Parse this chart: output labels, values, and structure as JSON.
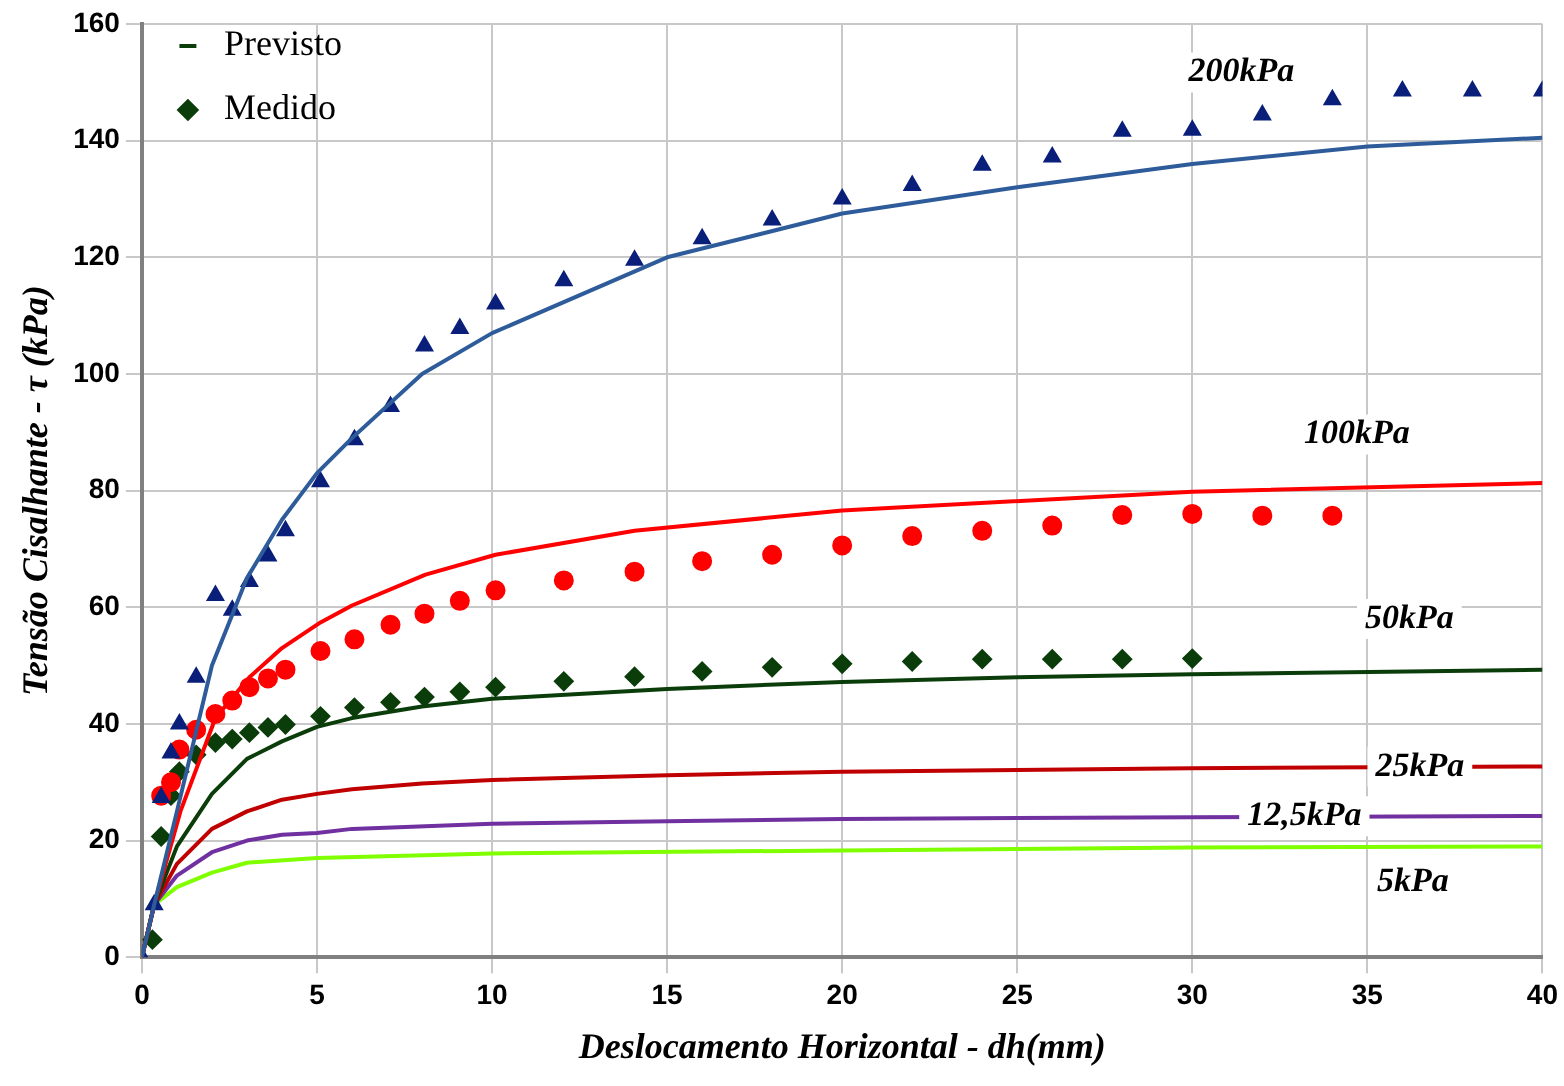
{
  "chart_data": {
    "type": "line",
    "xlabel": "Deslocamento Horizontal - dh(mm)",
    "ylabel": "Tensão Cisalhante - τ (kPa)",
    "xlim": [
      0,
      40
    ],
    "xticks": [
      0,
      5,
      10,
      15,
      20,
      25,
      30,
      35,
      40
    ],
    "ylim": [
      0,
      160
    ],
    "yticks": [
      0,
      20,
      40,
      60,
      80,
      100,
      120,
      140,
      160
    ],
    "grid": true,
    "legend": "top left",
    "line_style": "solid",
    "series": [
      {
        "marker": "none",
        "color": "#2e5c9a",
        "x": [
          0,
          0.35,
          1,
          2,
          3,
          4,
          5,
          6,
          8,
          10,
          15,
          20,
          25,
          30,
          35,
          40
        ],
        "values": [
          0,
          9,
          25,
          50,
          65,
          75,
          83,
          89,
          100,
          107,
          120,
          127.5,
          132,
          136,
          139,
          140.5
        ]
      },
      {
        "type": "scatter",
        "marker": "triangle",
        "color": "#0a1f7a",
        "x": [
          0,
          0.35,
          0.55,
          0.83,
          1.07,
          1.55,
          2.1,
          2.58,
          3.07,
          3.6,
          4.1,
          5.1,
          6.07,
          7.1,
          8.07,
          9.08,
          10.1,
          12.05,
          14.07,
          16,
          18,
          20,
          22,
          24,
          26,
          28,
          30,
          32,
          34,
          36,
          38,
          40
        ],
        "values": [
          0,
          9,
          27.4,
          35,
          40,
          48,
          62,
          59.5,
          64.4,
          68.8,
          73.1,
          81.5,
          88.7,
          94.4,
          104.8,
          107.8,
          112,
          116,
          119.5,
          123.2,
          126.4,
          130,
          132.3,
          135.8,
          137.2,
          141.6,
          141.8,
          144.4,
          147,
          148.5,
          148.5,
          148.5
        ]
      },
      {
        "marker": "none",
        "color": "#ff0000",
        "x": [
          0,
          0.35,
          1.1,
          2.1,
          3.07,
          4,
          5.1,
          6,
          8.1,
          10.1,
          14.07,
          20,
          30,
          40
        ],
        "values": [
          0,
          9,
          25,
          41,
          48,
          53,
          57.4,
          60.3,
          65.6,
          69,
          73.1,
          76.6,
          79.8,
          81.3
        ]
      },
      {
        "type": "scatter",
        "marker": "circle",
        "color": "#ff0000",
        "x": [
          0.55,
          0.83,
          1.07,
          1.55,
          2.1,
          2.58,
          3.07,
          3.6,
          4.1,
          5.1,
          6.07,
          7.1,
          8.07,
          9.08,
          10.1,
          12.05,
          14.07,
          16,
          18,
          20,
          22,
          24,
          26,
          28,
          30,
          32,
          34
        ],
        "values": [
          27.7,
          30,
          35.6,
          39,
          41.7,
          44,
          46.3,
          47.8,
          49.3,
          52.5,
          54.5,
          57,
          58.9,
          61.1,
          62.9,
          64.6,
          66.1,
          67.9,
          69,
          70.6,
          72.2,
          73.1,
          74,
          75.8,
          76,
          75.7,
          75.7
        ]
      },
      {
        "marker": "none",
        "name": "Previsto",
        "color": "#0b3d0b",
        "x": [
          0,
          0.35,
          1,
          2,
          3,
          4,
          5,
          6,
          8,
          10,
          15,
          20,
          25,
          30,
          40
        ],
        "values": [
          0,
          9,
          19,
          28,
          34,
          37,
          39.5,
          41,
          43,
          44.3,
          46,
          47.2,
          48,
          48.5,
          49.3
        ]
      },
      {
        "type": "scatter",
        "marker": "diamond",
        "name": "Medido",
        "color": "#0b3d0b",
        "x": [
          0.3,
          0.55,
          0.83,
          1.07,
          1.55,
          2.1,
          2.58,
          3.07,
          3.6,
          4.1,
          5.1,
          6.07,
          7.1,
          8.07,
          9.08,
          10.1,
          12.05,
          14.07,
          16,
          18,
          20,
          22,
          24,
          26,
          28,
          30
        ],
        "values": [
          3,
          20.7,
          27.7,
          31.8,
          34.7,
          36.8,
          37.4,
          38.5,
          39.4,
          39.9,
          41.3,
          42.8,
          43.7,
          44.6,
          45.5,
          46.3,
          47.3,
          48.1,
          49,
          49.7,
          50.3,
          50.7,
          51.1,
          51.1,
          51.1,
          51.2
        ]
      },
      {
        "marker": "none",
        "color": "#c00000",
        "x": [
          0,
          0.35,
          1,
          2,
          3,
          4,
          5,
          6,
          8,
          10,
          15,
          20,
          30,
          40
        ],
        "values": [
          0,
          9,
          16,
          22,
          25,
          27,
          28,
          28.8,
          29.8,
          30.4,
          31.2,
          31.8,
          32.4,
          32.7
        ]
      },
      {
        "marker": "none",
        "color": "#7030a0",
        "x": [
          0,
          0.35,
          1,
          2,
          3,
          4,
          5,
          6,
          10,
          15,
          20,
          30,
          40
        ],
        "values": [
          0,
          9,
          14,
          18,
          20,
          21,
          21.3,
          22,
          22.9,
          23.3,
          23.7,
          24,
          24.2
        ]
      },
      {
        "marker": "none",
        "color": "#80ff00",
        "x": [
          0,
          0.35,
          1,
          2,
          3,
          5,
          10,
          20,
          30,
          40
        ],
        "values": [
          0,
          9,
          12,
          14.5,
          16.2,
          17,
          17.8,
          18.3,
          18.8,
          19
        ]
      }
    ],
    "annotations": [
      "200kPa",
      "100kPa",
      "50kPa",
      "25kPa",
      "12,5kPa",
      "5kPa"
    ]
  }
}
